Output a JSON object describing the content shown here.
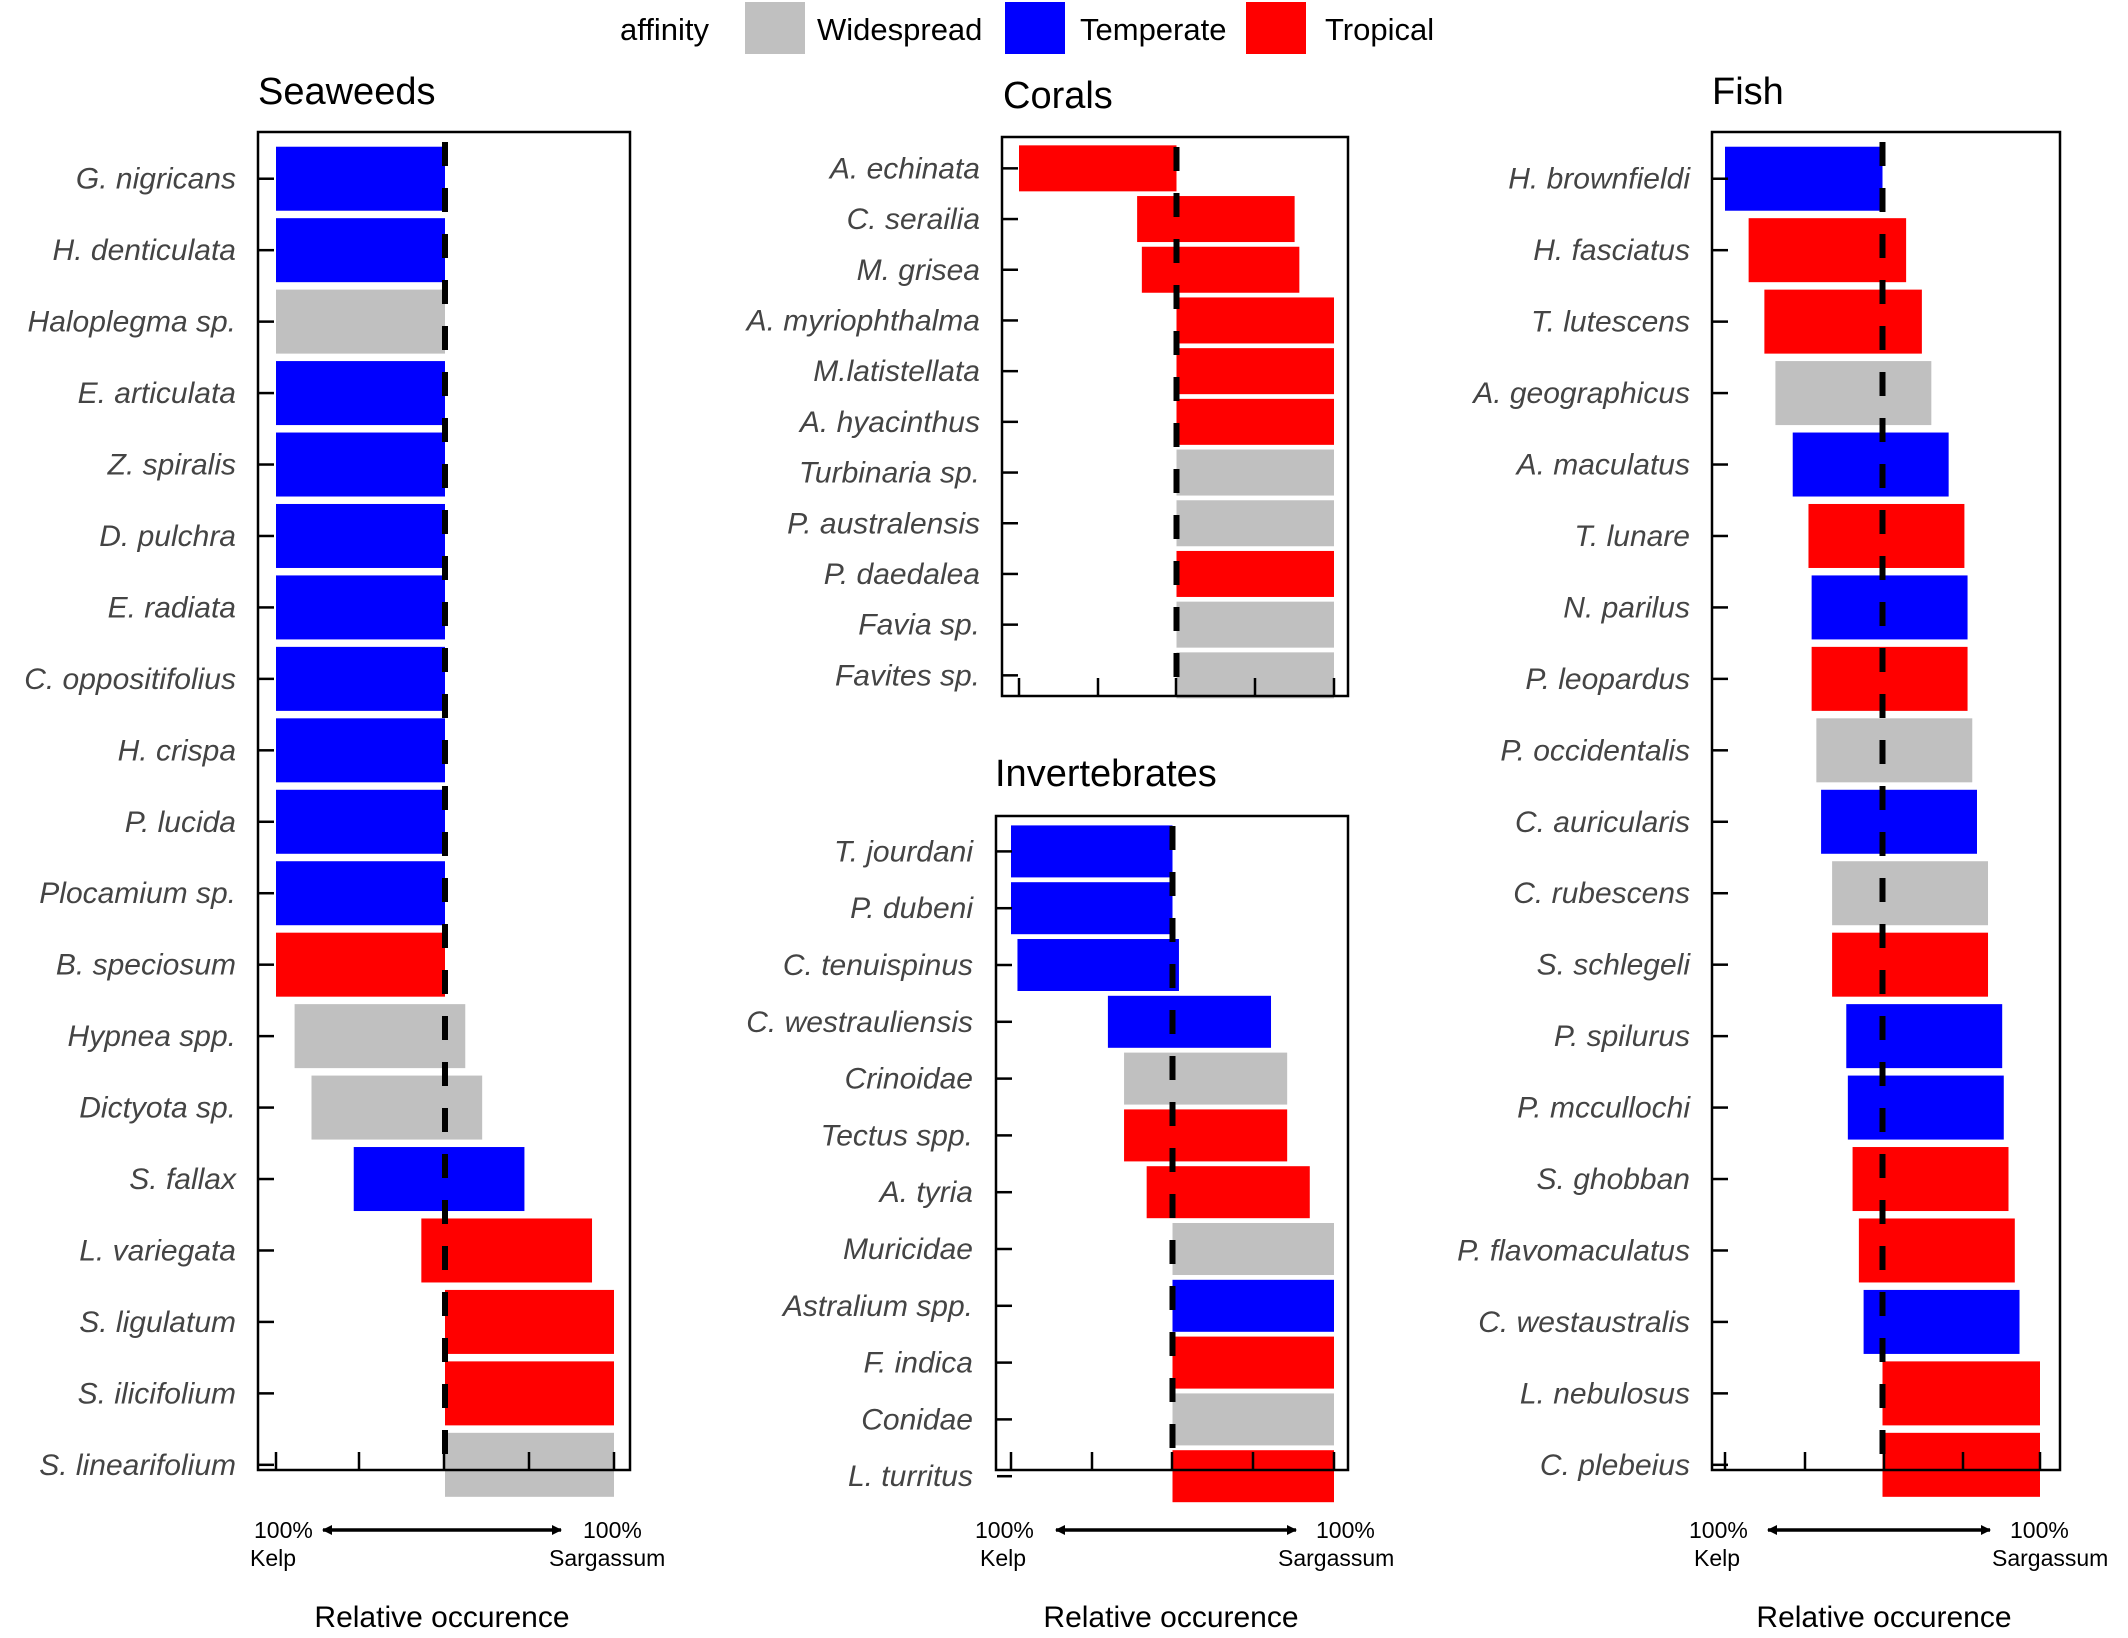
{
  "chart_data": {
    "type": "bar",
    "legend": {
      "title": "affinity",
      "placement": "top",
      "entries": [
        {
          "name": "Widespread",
          "color": "#c0c0c0"
        },
        {
          "name": "Temperate",
          "color": "#0000ff"
        },
        {
          "name": "Tropical",
          "color": "#ff0000"
        }
      ]
    },
    "panels": [
      {
        "id": "seaweeds",
        "title": "Seaweeds",
        "xlabel": "Relative occurence",
        "x_left_label": [
          "100%",
          "Kelp"
        ],
        "x_right_label": [
          "100%",
          "Sargassum"
        ],
        "xlim": [
          -100,
          100
        ],
        "reference_line": 0,
        "bars": [
          {
            "label": "G. nigricans",
            "affinity": "Temperate",
            "from": -100,
            "to": 0
          },
          {
            "label": "H. denticulata",
            "affinity": "Temperate",
            "from": -100,
            "to": 0
          },
          {
            "label": "Haloplegma sp.",
            "affinity": "Widespread",
            "from": -100,
            "to": 0
          },
          {
            "label": "E. articulata",
            "affinity": "Temperate",
            "from": -100,
            "to": 0
          },
          {
            "label": "Z. spiralis",
            "affinity": "Temperate",
            "from": -100,
            "to": 0
          },
          {
            "label": "D. pulchra",
            "affinity": "Temperate",
            "from": -100,
            "to": 0
          },
          {
            "label": "E. radiata",
            "affinity": "Temperate",
            "from": -100,
            "to": 0
          },
          {
            "label": "C. oppositifolius",
            "affinity": "Temperate",
            "from": -100,
            "to": 0
          },
          {
            "label": "H. crispa",
            "affinity": "Temperate",
            "from": -100,
            "to": 0
          },
          {
            "label": "P. lucida",
            "affinity": "Temperate",
            "from": -100,
            "to": 0
          },
          {
            "label": "Plocamium sp.",
            "affinity": "Temperate",
            "from": -100,
            "to": 0
          },
          {
            "label": "B. speciosum",
            "affinity": "Tropical",
            "from": -100,
            "to": 0
          },
          {
            "label": "Hypnea spp.",
            "affinity": "Widespread",
            "from": -89,
            "to": 12
          },
          {
            "label": "Dictyota sp.",
            "affinity": "Widespread",
            "from": -79,
            "to": 22
          },
          {
            "label": "S. fallax",
            "affinity": "Temperate",
            "from": -54,
            "to": 47
          },
          {
            "label": "L. variegata",
            "affinity": "Tropical",
            "from": -14,
            "to": 87
          },
          {
            "label": "S. ligulatum",
            "affinity": "Tropical",
            "from": 0,
            "to": 100
          },
          {
            "label": "S. ilicifolium",
            "affinity": "Tropical",
            "from": 0,
            "to": 100
          },
          {
            "label": "S. linearifolium",
            "affinity": "Widespread",
            "from": 0,
            "to": 100
          }
        ]
      },
      {
        "id": "corals",
        "title": "Corals",
        "xlim": [
          -100,
          100
        ],
        "reference_line": 0,
        "bars": [
          {
            "label": "A. echinata",
            "affinity": "Tropical",
            "from": -100,
            "to": 0
          },
          {
            "label": "C. serailia",
            "affinity": "Tropical",
            "from": -25,
            "to": 75
          },
          {
            "label": "M. grisea",
            "affinity": "Tropical",
            "from": -22,
            "to": 78
          },
          {
            "label": "A. myriophthalma",
            "affinity": "Tropical",
            "from": 0,
            "to": 100
          },
          {
            "label": "M.latistellata",
            "affinity": "Tropical",
            "from": 0,
            "to": 100
          },
          {
            "label": "A. hyacinthus",
            "affinity": "Tropical",
            "from": 0,
            "to": 100
          },
          {
            "label": "Turbinaria sp.",
            "affinity": "Widespread",
            "from": 0,
            "to": 100
          },
          {
            "label": "P. australensis",
            "affinity": "Widespread",
            "from": 0,
            "to": 100
          },
          {
            "label": "P. daedalea",
            "affinity": "Tropical",
            "from": 0,
            "to": 100
          },
          {
            "label": "Favia sp.",
            "affinity": "Widespread",
            "from": 0,
            "to": 100
          },
          {
            "label": "Favites sp.",
            "affinity": "Widespread",
            "from": 0,
            "to": 100
          }
        ]
      },
      {
        "id": "invertebrates",
        "title": "Invertebrates",
        "xlabel": "Relative occurence",
        "x_left_label": [
          "100%",
          "Kelp"
        ],
        "x_right_label": [
          "100%",
          "Sargassum"
        ],
        "xlim": [
          -100,
          100
        ],
        "reference_line": 0,
        "bars": [
          {
            "label": "T. jourdani",
            "affinity": "Temperate",
            "from": -100,
            "to": 0
          },
          {
            "label": "P. dubeni",
            "affinity": "Temperate",
            "from": -100,
            "to": 0
          },
          {
            "label": "C. tenuispinus",
            "affinity": "Temperate",
            "from": -96,
            "to": 4
          },
          {
            "label": "C. westrauliensis",
            "affinity": "Temperate",
            "from": -40,
            "to": 61
          },
          {
            "label": "Crinoidae",
            "affinity": "Widespread",
            "from": -30,
            "to": 71
          },
          {
            "label": "Tectus spp.",
            "affinity": "Tropical",
            "from": -30,
            "to": 71
          },
          {
            "label": "A. tyria",
            "affinity": "Tropical",
            "from": -16,
            "to": 85
          },
          {
            "label": "Muricidae",
            "affinity": "Widespread",
            "from": 0,
            "to": 100
          },
          {
            "label": "Astralium spp.",
            "affinity": "Temperate",
            "from": 0,
            "to": 100
          },
          {
            "label": "F. indica",
            "affinity": "Tropical",
            "from": 0,
            "to": 100
          },
          {
            "label": "Conidae",
            "affinity": "Widespread",
            "from": 0,
            "to": 100
          },
          {
            "label": "L. turritus",
            "affinity": "Tropical",
            "from": 0,
            "to": 100
          }
        ]
      },
      {
        "id": "fish",
        "title": "Fish",
        "xlabel": "Relative occurence",
        "x_left_label": [
          "100%",
          "Kelp"
        ],
        "x_right_label": [
          "100%",
          "Sargassum"
        ],
        "xlim": [
          -100,
          100
        ],
        "reference_line": 0,
        "bars": [
          {
            "label": "H. brownfieldi",
            "affinity": "Temperate",
            "from": -100,
            "to": 0
          },
          {
            "label": "H. fasciatus",
            "affinity": "Tropical",
            "from": -85,
            "to": 15
          },
          {
            "label": "T. lutescens",
            "affinity": "Tropical",
            "from": -75,
            "to": 25
          },
          {
            "label": "A. geographicus",
            "affinity": "Widespread",
            "from": -68,
            "to": 31
          },
          {
            "label": "A. maculatus",
            "affinity": "Temperate",
            "from": -57,
            "to": 42
          },
          {
            "label": "T. lunare",
            "affinity": "Tropical",
            "from": -47,
            "to": 52
          },
          {
            "label": "N. parilus",
            "affinity": "Temperate",
            "from": -45,
            "to": 54
          },
          {
            "label": "P. leopardus",
            "affinity": "Tropical",
            "from": -45,
            "to": 54
          },
          {
            "label": "P. occidentalis",
            "affinity": "Widespread",
            "from": -42,
            "to": 57
          },
          {
            "label": "C. auricularis",
            "affinity": "Temperate",
            "from": -39,
            "to": 60
          },
          {
            "label": "C. rubescens",
            "affinity": "Widespread",
            "from": -32,
            "to": 67
          },
          {
            "label": "S. schlegeli",
            "affinity": "Tropical",
            "from": -32,
            "to": 67
          },
          {
            "label": "P. spilurus",
            "affinity": "Temperate",
            "from": -23,
            "to": 76
          },
          {
            "label": "P. mccullochi",
            "affinity": "Temperate",
            "from": -22,
            "to": 77
          },
          {
            "label": "S. ghobban",
            "affinity": "Tropical",
            "from": -19,
            "to": 80
          },
          {
            "label": "P. flavomaculatus",
            "affinity": "Tropical",
            "from": -15,
            "to": 84
          },
          {
            "label": "C. westaustralis",
            "affinity": "Temperate",
            "from": -12,
            "to": 87
          },
          {
            "label": "L. nebulosus",
            "affinity": "Tropical",
            "from": 0,
            "to": 100
          },
          {
            "label": "C. plebeius",
            "affinity": "Tropical",
            "from": 0,
            "to": 100
          }
        ]
      }
    ]
  }
}
